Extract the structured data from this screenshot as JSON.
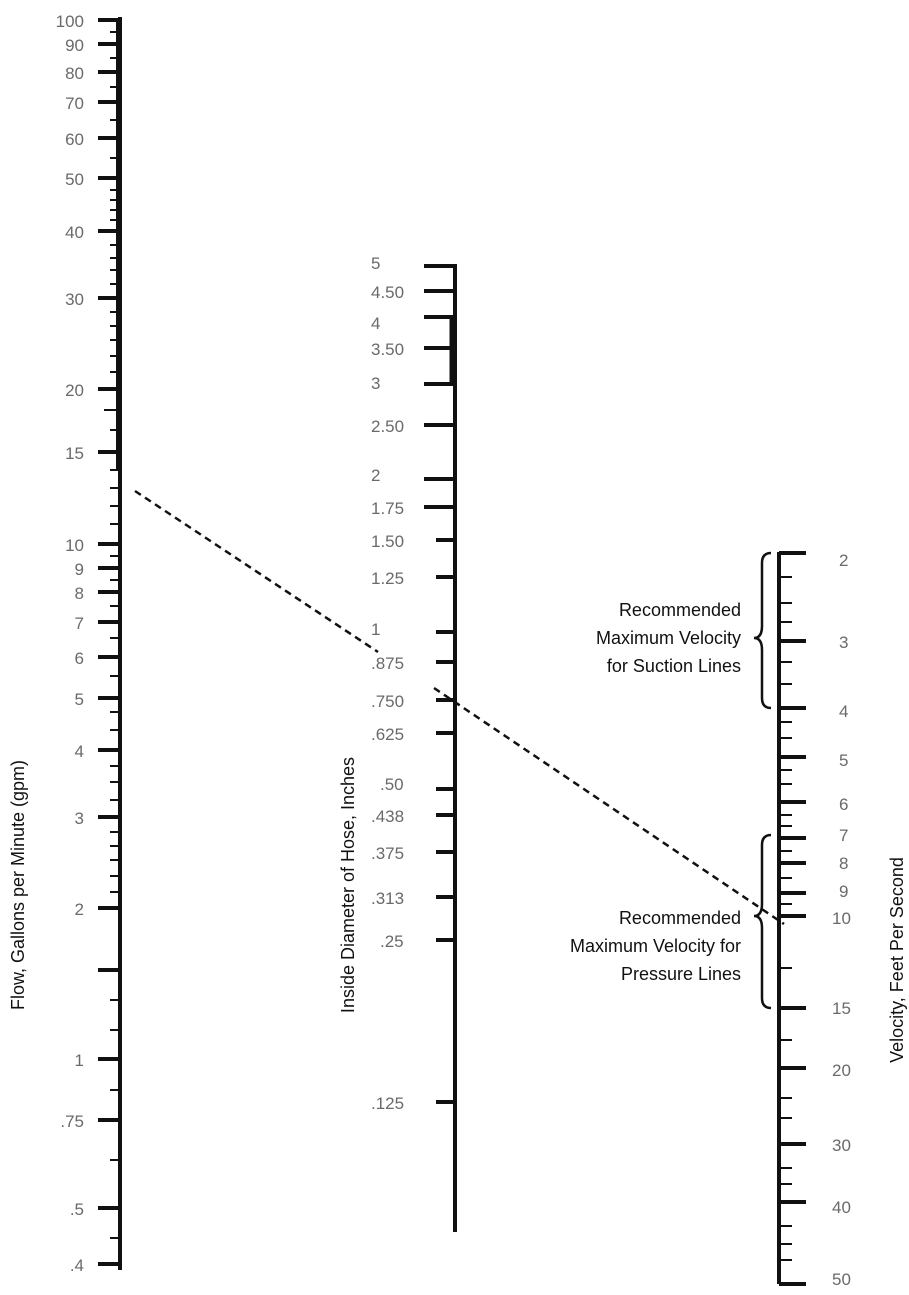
{
  "flow_scale": {
    "title": "Flow, Gallons per Minute (gpm)",
    "labels": [
      "100",
      "90",
      "80",
      "70",
      "60",
      "50",
      "40",
      "30",
      "20",
      "15",
      "10",
      "9",
      "8",
      "7",
      "6",
      "5",
      "4",
      "3",
      "2",
      "1",
      ".75",
      ".5",
      ".4"
    ]
  },
  "diameter_scale": {
    "title": "Inside Diameter of Hose, Inches",
    "labels": [
      "5",
      "4.50",
      "4",
      "3.50",
      "3",
      "2.50",
      "2",
      "1.75",
      "1.50",
      "1.25",
      "1",
      ".875",
      ".750",
      ".625",
      ".50",
      ".438",
      ".375",
      ".313",
      ".25",
      ".125"
    ]
  },
  "velocity_scale": {
    "title": "Velocity, Feet Per Second",
    "labels": [
      "2",
      "3",
      "4",
      "5",
      "6",
      "7",
      "8",
      "9",
      "10",
      "15",
      "20",
      "30",
      "40",
      "50"
    ]
  },
  "suction_note": {
    "line1": "Recommended",
    "line2": "Maximum Velocity",
    "line3": "for Suction Lines"
  },
  "pressure_note": {
    "line1": "Recommended",
    "line2": "Maximum Velocity for",
    "line3": "Pressure Lines"
  },
  "colors": {
    "axis": "#111111",
    "tick_label": "#6a6a6a",
    "text": "#111111"
  }
}
